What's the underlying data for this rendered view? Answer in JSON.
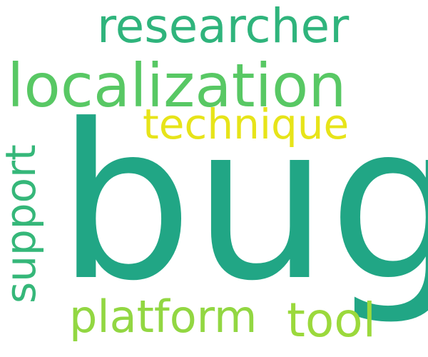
{
  "words": [
    {
      "text": "bug",
      "color": "#21a685",
      "orientation": "horizontal"
    },
    {
      "text": "localization",
      "color": "#58c864",
      "orientation": "horizontal"
    },
    {
      "text": "researcher",
      "color": "#2fb47c",
      "orientation": "horizontal"
    },
    {
      "text": "technique",
      "color": "#e7e419",
      "orientation": "horizontal"
    },
    {
      "text": "support",
      "color": "#35b779",
      "orientation": "vertical"
    },
    {
      "text": "platform",
      "color": "#92d742",
      "orientation": "horizontal"
    },
    {
      "text": "tool",
      "color": "#9bd93c",
      "orientation": "horizontal"
    }
  ]
}
